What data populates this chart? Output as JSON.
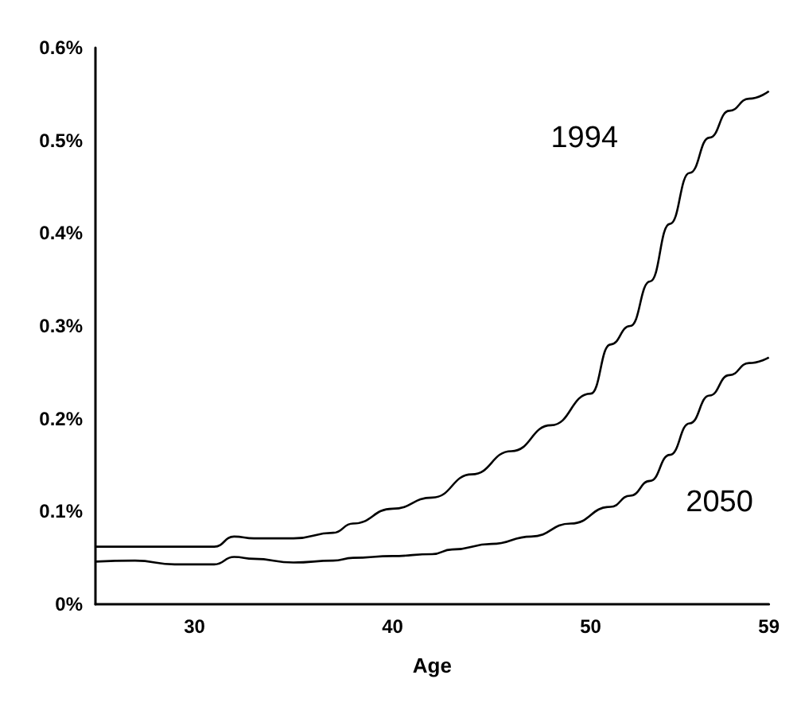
{
  "chart_data": {
    "type": "line",
    "xlabel": "Age",
    "xlim": [
      25,
      59
    ],
    "xticks": [
      30,
      40,
      50,
      59
    ],
    "ylim": [
      0,
      0.6
    ],
    "yticks": [
      {
        "value": 0,
        "label": "0%"
      },
      {
        "value": 0.1,
        "label": "0.1%"
      },
      {
        "value": 0.2,
        "label": "0.2%"
      },
      {
        "value": 0.3,
        "label": "0.3%"
      },
      {
        "value": 0.4,
        "label": "0.4%"
      },
      {
        "value": 0.5,
        "label": "0.5%"
      },
      {
        "value": 0.6,
        "label": "0.6%"
      }
    ],
    "grid": false,
    "legend": false,
    "marker": "none",
    "line_style": "solid",
    "series": [
      {
        "name": "1994",
        "color": "#000000",
        "x": [
          25,
          27,
          29,
          31,
          32,
          33,
          35,
          37,
          38,
          40,
          42,
          44,
          46,
          48,
          50,
          51,
          52,
          53,
          54,
          55,
          56,
          57,
          58,
          59
        ],
        "values": [
          0.062,
          0.062,
          0.062,
          0.062,
          0.073,
          0.071,
          0.071,
          0.077,
          0.087,
          0.103,
          0.115,
          0.14,
          0.165,
          0.193,
          0.227,
          0.28,
          0.3,
          0.348,
          0.41,
          0.465,
          0.503,
          0.532,
          0.545,
          0.553
        ]
      },
      {
        "name": "2050",
        "color": "#000000",
        "x": [
          25,
          27,
          29,
          31,
          32,
          33,
          35,
          37,
          38,
          40,
          42,
          43,
          45,
          47,
          49,
          51,
          52,
          53,
          54,
          55,
          56,
          57,
          58,
          59
        ],
        "values": [
          0.046,
          0.047,
          0.043,
          0.043,
          0.051,
          0.049,
          0.045,
          0.047,
          0.05,
          0.052,
          0.054,
          0.059,
          0.065,
          0.073,
          0.087,
          0.105,
          0.117,
          0.133,
          0.161,
          0.195,
          0.225,
          0.247,
          0.26,
          0.266
        ]
      }
    ]
  }
}
